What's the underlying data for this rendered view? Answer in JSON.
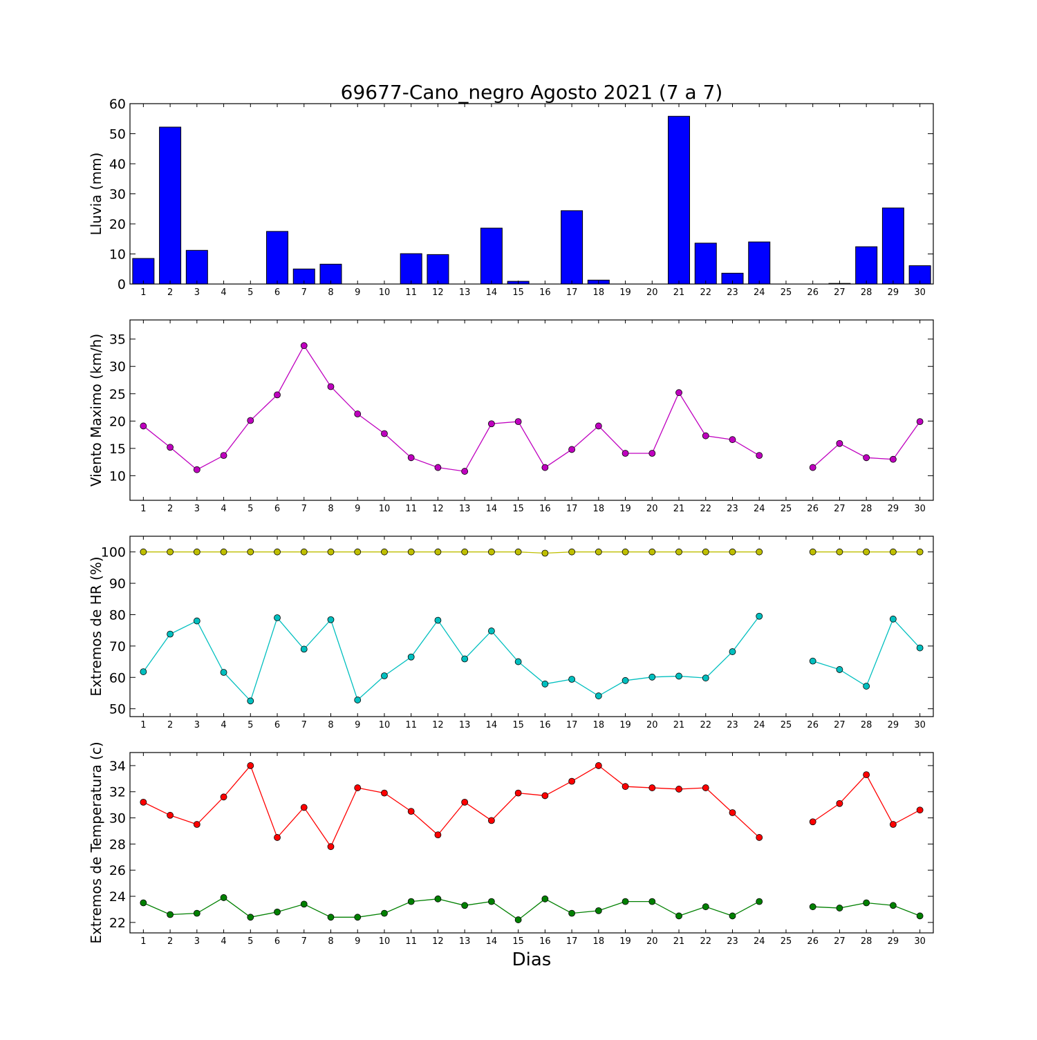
{
  "title": "69677-Cano_negro Agosto 2021  (7 a 7)",
  "xlabel": "Dias",
  "days": [
    1,
    2,
    3,
    4,
    5,
    6,
    7,
    8,
    9,
    10,
    11,
    12,
    13,
    14,
    15,
    16,
    17,
    18,
    19,
    20,
    21,
    22,
    23,
    24,
    25,
    26,
    27,
    28,
    29,
    30
  ],
  "chart_data": [
    {
      "type": "bar",
      "ylabel": "Lluvia (mm)",
      "ylim": [
        0,
        60
      ],
      "yticks": [
        0,
        10,
        20,
        30,
        40,
        50,
        60
      ],
      "series": [
        {
          "color": "#0000ff",
          "values": [
            8.5,
            52.2,
            11.2,
            0,
            0,
            17.5,
            5.0,
            6.6,
            0,
            0,
            10.1,
            9.8,
            0,
            18.6,
            0.9,
            0,
            24.4,
            1.3,
            0,
            0,
            55.8,
            13.6,
            3.6,
            14.0,
            0,
            0,
            0.2,
            12.4,
            25.3,
            6.1
          ]
        }
      ]
    },
    {
      "type": "line",
      "ylabel": "Viento Maximo (km/h)",
      "ylim": [
        5.5,
        38.5
      ],
      "yticks": [
        10,
        15,
        20,
        25,
        30,
        35
      ],
      "series": [
        {
          "color": "#bf00bf",
          "values": [
            19.1,
            15.2,
            11.1,
            13.7,
            20.1,
            24.8,
            33.8,
            26.3,
            21.3,
            17.7,
            13.3,
            11.5,
            10.8,
            19.5,
            19.9,
            11.5,
            14.8,
            19.1,
            14.1,
            14.1,
            25.2,
            17.3,
            16.6,
            13.7,
            null,
            11.5,
            15.9,
            13.3,
            13.0,
            19.9
          ]
        }
      ]
    },
    {
      "type": "line",
      "ylabel": "Extremos de HR (%)",
      "ylim": [
        47.5,
        105
      ],
      "yticks": [
        50,
        60,
        70,
        80,
        90,
        100
      ],
      "series": [
        {
          "color": "#bfbf00",
          "values": [
            100,
            100,
            100,
            100,
            100,
            100,
            100,
            100,
            100,
            100,
            100,
            100,
            100,
            100,
            100,
            99.6,
            100,
            100,
            100,
            100,
            100,
            100,
            100,
            100,
            null,
            100,
            100,
            100,
            100,
            100
          ]
        },
        {
          "color": "#00bfbf",
          "values": [
            61.8,
            73.8,
            78.0,
            61.6,
            52.5,
            79.0,
            69.0,
            78.4,
            52.8,
            60.5,
            66.5,
            78.2,
            65.9,
            74.8,
            65.0,
            57.9,
            59.4,
            54.1,
            59.0,
            60.1,
            60.4,
            59.8,
            68.2,
            79.5,
            null,
            65.2,
            62.5,
            57.2,
            78.6,
            69.4
          ]
        }
      ]
    },
    {
      "type": "line",
      "ylabel": "Extremos de Temperatura (c)",
      "ylim": [
        21.2,
        35
      ],
      "yticks": [
        22,
        24,
        26,
        28,
        30,
        32,
        34
      ],
      "series": [
        {
          "color": "#ff0000",
          "values": [
            31.2,
            30.2,
            29.5,
            31.6,
            34.0,
            28.5,
            30.8,
            27.8,
            32.3,
            31.9,
            30.5,
            28.7,
            31.2,
            29.8,
            31.9,
            31.7,
            32.8,
            34.0,
            32.4,
            32.3,
            32.2,
            32.3,
            30.4,
            28.5,
            null,
            29.7,
            31.1,
            33.3,
            29.5,
            30.6
          ]
        },
        {
          "color": "#008000",
          "values": [
            23.5,
            22.6,
            22.7,
            23.9,
            22.4,
            22.8,
            23.4,
            22.4,
            22.4,
            22.7,
            23.6,
            23.8,
            23.3,
            23.6,
            22.2,
            23.8,
            22.7,
            22.9,
            23.6,
            23.6,
            22.5,
            23.2,
            22.5,
            23.6,
            null,
            23.2,
            23.1,
            23.5,
            23.3,
            22.5
          ]
        }
      ]
    }
  ]
}
